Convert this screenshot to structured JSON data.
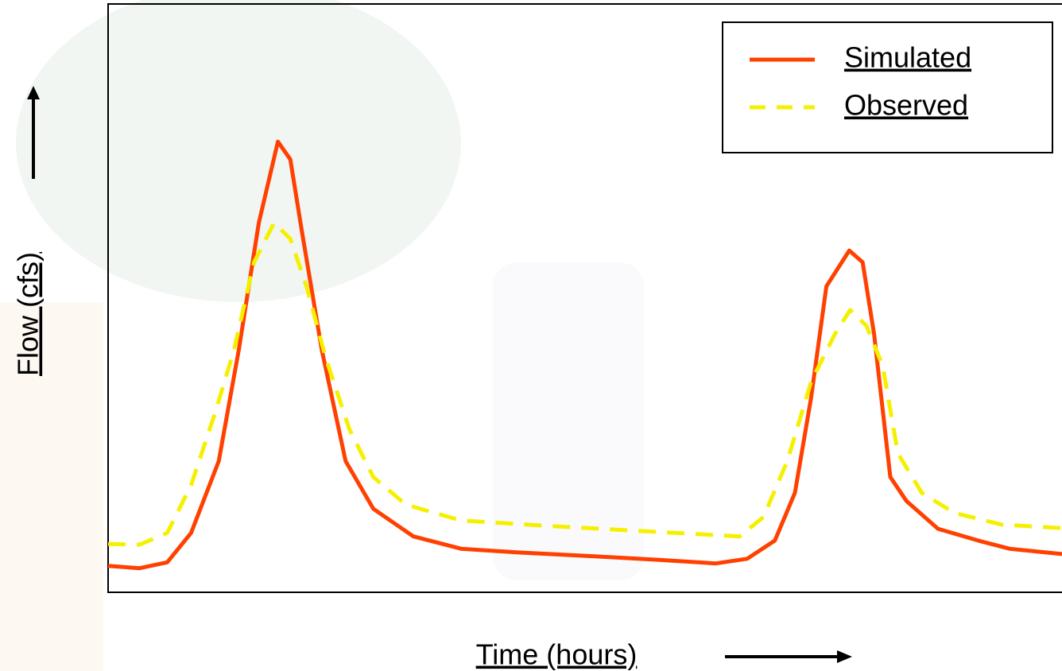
{
  "chart_data": {
    "type": "line",
    "x_label": "Time (hours)",
    "y_label": "Flow (cfs)",
    "xlim": [
      0,
      100
    ],
    "ylim": [
      0,
      100
    ],
    "legend": "top-right",
    "series": [
      {
        "name": "Simulated",
        "color": "#ff4000",
        "line_style": "solid",
        "x": [
          0,
          3.3,
          6.2,
          8.7,
          11.6,
          13.7,
          15.8,
          17.8,
          19.1,
          20.3,
          22.4,
          24.9,
          27.8,
          32.0,
          37.0,
          42.8,
          51.2,
          57.8,
          63.7,
          67.0,
          69.9,
          72.0,
          73.7,
          75.3,
          77.7,
          79.1,
          80.3,
          82.0,
          83.7,
          87.0,
          91.2,
          94.5,
          100
        ],
        "values": [
          4.5,
          4.1,
          5.1,
          10.1,
          22.3,
          41.2,
          62.8,
          76.6,
          73.6,
          61.5,
          41.2,
          22.3,
          14.2,
          9.5,
          7.4,
          6.8,
          6.1,
          5.5,
          4.9,
          5.7,
          8.8,
          16.9,
          33.1,
          52.0,
          58.1,
          56.1,
          43.9,
          19.6,
          15.5,
          10.8,
          8.8,
          7.4,
          6.5
        ]
      },
      {
        "name": "Observed",
        "color": "#f5f000",
        "line_style": "dashed",
        "x": [
          0,
          3.3,
          6.2,
          8.7,
          11.2,
          13.2,
          15.3,
          17.4,
          19.1,
          20.8,
          22.8,
          25.3,
          27.8,
          31.2,
          37.0,
          47.0,
          59.5,
          66.2,
          68.7,
          71.2,
          73.7,
          76.2,
          77.8,
          79.5,
          81.2,
          82.8,
          85.3,
          88.7,
          93.7,
          100
        ],
        "values": [
          8.2,
          8.1,
          10.1,
          18.2,
          30.4,
          41.2,
          56.1,
          62.8,
          60.1,
          52.0,
          39.9,
          27.7,
          19.6,
          14.9,
          12.2,
          11.2,
          10.1,
          9.5,
          12.8,
          22.3,
          35.8,
          43.9,
          48.0,
          45.3,
          38.5,
          23.6,
          16.9,
          13.5,
          11.5,
          10.9
        ]
      }
    ]
  }
}
